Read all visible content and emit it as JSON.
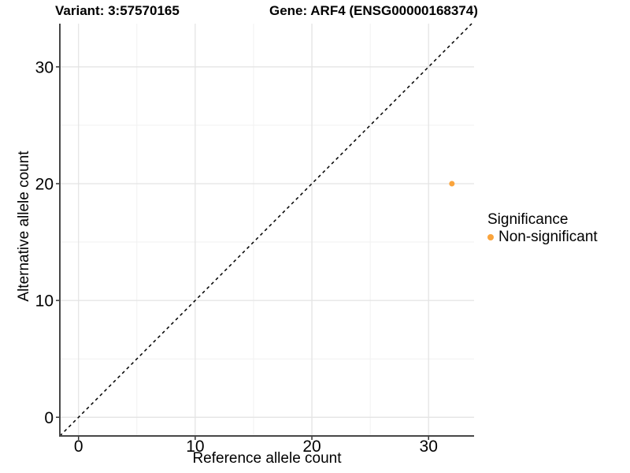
{
  "legend": {
    "title": "Significance",
    "items": [
      {
        "label": "Non-significant",
        "color": "#FAA43C"
      }
    ]
  },
  "chart_data": {
    "type": "scatter",
    "title_variant": "Variant: 3:57570165",
    "title_gene": "Gene: ARF4 (ENSG00000168374)",
    "xlabel": "Reference allele count",
    "ylabel": "Alternative allele count",
    "xlim": [
      -1.6,
      33.9
    ],
    "ylim": [
      -1.6,
      33.7
    ],
    "x_ticks": [
      0,
      10,
      20,
      30
    ],
    "y_ticks": [
      0,
      10,
      20,
      30
    ],
    "x_minor_ticks": [
      5,
      15,
      25
    ],
    "y_minor_ticks": [
      5,
      15,
      25
    ],
    "grid": true,
    "legend_position": "right",
    "series": [
      {
        "name": "Non-significant",
        "color": "#FAA43C",
        "points": [
          {
            "x": 32,
            "y": 20
          }
        ]
      }
    ],
    "reference_line": {
      "type": "identity",
      "slope": 1,
      "intercept": 0,
      "style": "dashed",
      "color": "#000000"
    }
  },
  "colors": {
    "background": "#ffffff",
    "grid_major": "#e4e4e4",
    "grid_minor": "#f1f1f1",
    "axis_line": "#474747",
    "tick_mark": "#333333",
    "text": "#000000"
  }
}
